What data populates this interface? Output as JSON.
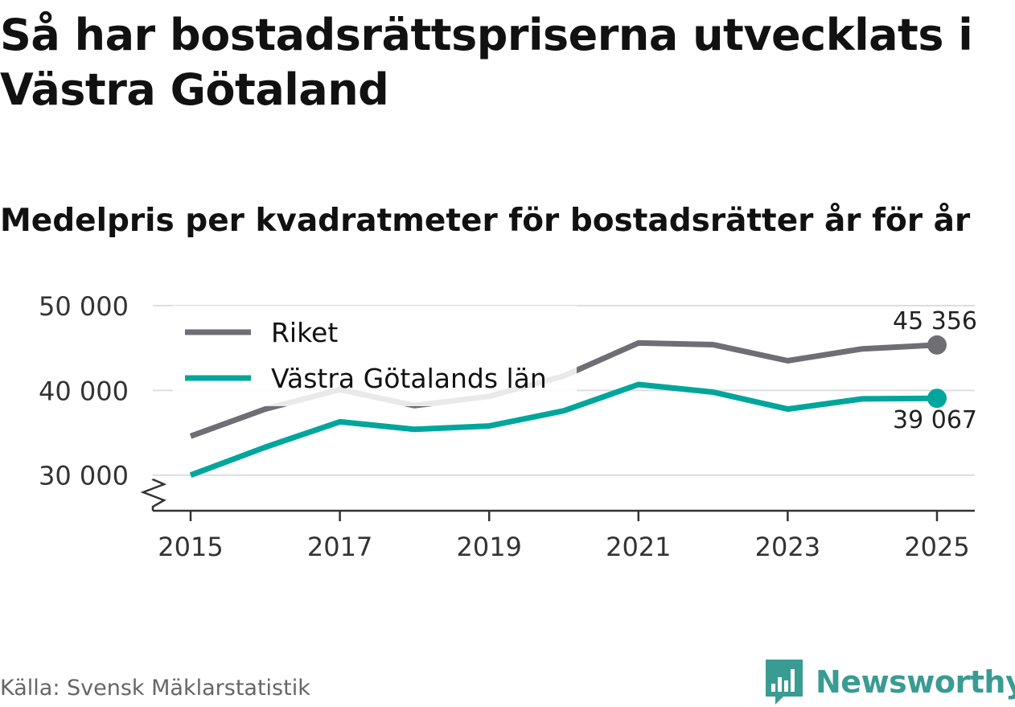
{
  "title": "Så har bostadsrättspriserna utvecklats i Västra Götaland",
  "subtitle": "Medelpris per kvadratmeter för bostadsrätter år för år",
  "source": "Källa: Svensk Mäklarstatistik",
  "brand": {
    "name": "Newsworthy",
    "icon": "bar-chart-speech-bubble-icon",
    "color": "#3a9b93"
  },
  "colors": {
    "riket": "#6f6e74",
    "vg": "#00a69c",
    "grid": "#dddddd",
    "axis": "#333333"
  },
  "chart_data": {
    "type": "line",
    "x": [
      2015,
      2016,
      2017,
      2018,
      2019,
      2020,
      2021,
      2022,
      2023,
      2024,
      2025
    ],
    "x_ticks": [
      "2015",
      "2017",
      "2019",
      "2021",
      "2023",
      "2025"
    ],
    "y_ticks": [
      "30 000",
      "40 000",
      "50 000"
    ],
    "y_tick_values": [
      30000,
      40000,
      50000
    ],
    "ylim": [
      25800,
      50000
    ],
    "y_axis_break": true,
    "legend_position": "top-left",
    "series": [
      {
        "name": "Riket",
        "color": "#6f6e74",
        "values": [
          34600,
          37800,
          40100,
          38200,
          39300,
          41700,
          45600,
          45400,
          43500,
          44900,
          45356
        ],
        "end_label": "45 356"
      },
      {
        "name": "Västra Götalands län",
        "color": "#00a69c",
        "values": [
          30000,
          33300,
          36300,
          35400,
          35800,
          37600,
          40700,
          39800,
          37800,
          39000,
          39067
        ],
        "end_label": "39 067"
      }
    ]
  }
}
